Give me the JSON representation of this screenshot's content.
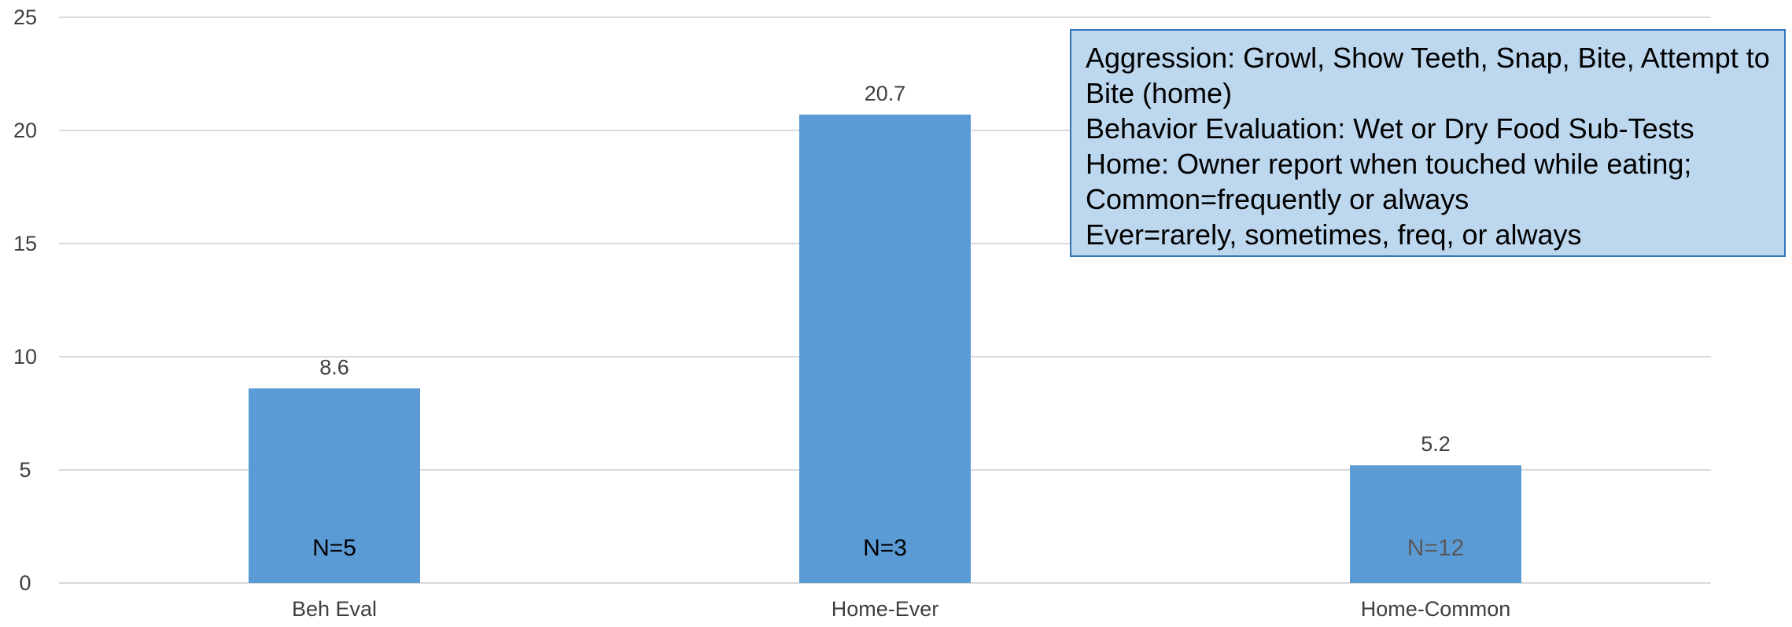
{
  "chart_data": {
    "type": "bar",
    "categories": [
      "Beh Eval",
      "Home-Ever",
      "Home-Common"
    ],
    "values": [
      8.6,
      20.7,
      5.2
    ],
    "data_labels": [
      "8.6",
      "20.7",
      "5.2"
    ],
    "bar_annotations": [
      "N=5",
      "N=3",
      "N=12"
    ],
    "annotation_colors": [
      "#000000",
      "#000000",
      "#595959"
    ],
    "yticks": [
      "0",
      "5",
      "10",
      "15",
      "20",
      "25"
    ],
    "ylim": [
      0,
      25
    ],
    "grid": true,
    "title": "",
    "xlabel": "",
    "ylabel": "",
    "bar_color": "#5b9bd5",
    "gridline_color": "#d9d9d9",
    "text_color": "#404040"
  },
  "note_box": {
    "lines": [
      "Aggression:  Growl, Show Teeth, Snap, Bite, Attempt to Bite (home)",
      "Behavior Evaluation:  Wet or Dry Food Sub-Tests",
      "Home:  Owner report when touched while eating; Common=frequently or always",
      "Ever=rarely, sometimes, freq, or always"
    ],
    "background": "#bdd7ee",
    "border": "#2e75b6"
  }
}
